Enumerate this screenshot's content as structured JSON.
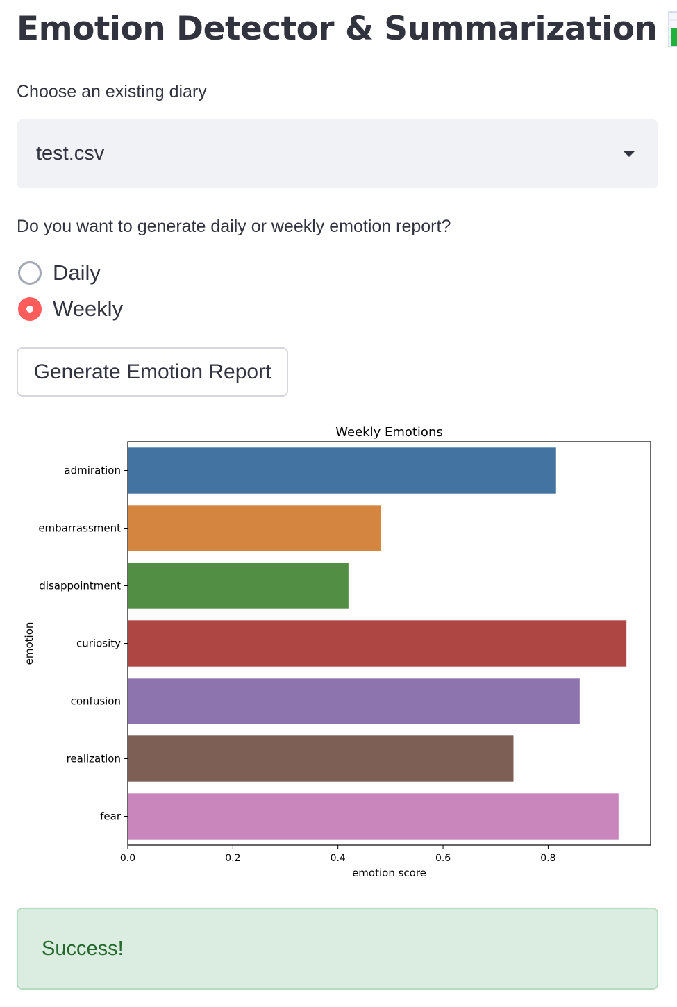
{
  "page": {
    "title": "Emotion Detector & Summarization",
    "title_icon": "bar-chart-emoji-icon"
  },
  "diary_select": {
    "label": "Choose an existing diary",
    "selected": "test.csv",
    "icon": "chevron-down-icon"
  },
  "report_type": {
    "label": "Do you want to generate daily or weekly emotion report?",
    "options": [
      {
        "label": "Daily",
        "selected": false
      },
      {
        "label": "Weekly",
        "selected": true
      }
    ]
  },
  "generate_button": {
    "label": "Generate Emotion Report"
  },
  "chart_data": {
    "type": "bar",
    "orientation": "horizontal",
    "title": "Weekly Emotions",
    "xlabel": "emotion score",
    "ylabel": "emotion",
    "categories": [
      "admiration",
      "embarrassment",
      "disappointment",
      "curiosity",
      "confusion",
      "realization",
      "fear"
    ],
    "values": [
      0.815,
      0.482,
      0.42,
      0.949,
      0.86,
      0.734,
      0.934
    ],
    "colors": [
      "#4373a0",
      "#d48640",
      "#528f45",
      "#ae4744",
      "#8e74ae",
      "#7e5f55",
      "#c886bc"
    ],
    "xlim": [
      0,
      0.995
    ],
    "xticks": [
      "0.0",
      "0.2",
      "0.4",
      "0.6",
      "0.8"
    ],
    "grid": false
  },
  "alert": {
    "message": "Success!",
    "status_color": "#26692e"
  }
}
